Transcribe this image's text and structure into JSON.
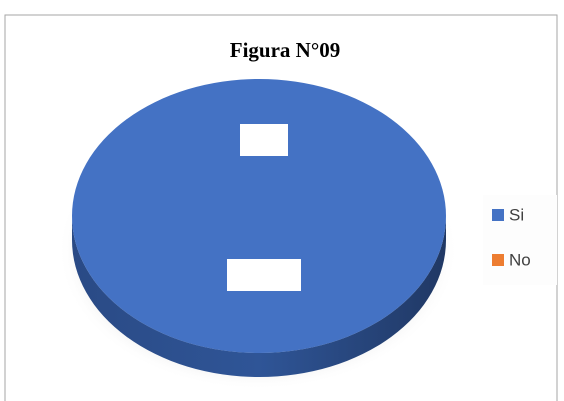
{
  "chart_data": {
    "type": "pie",
    "title": "Figura N°09",
    "categories": [
      "Si",
      "No"
    ],
    "values": [
      100,
      0
    ],
    "colors": [
      "#4472c4",
      "#ed7d31"
    ],
    "legend": "right"
  }
}
